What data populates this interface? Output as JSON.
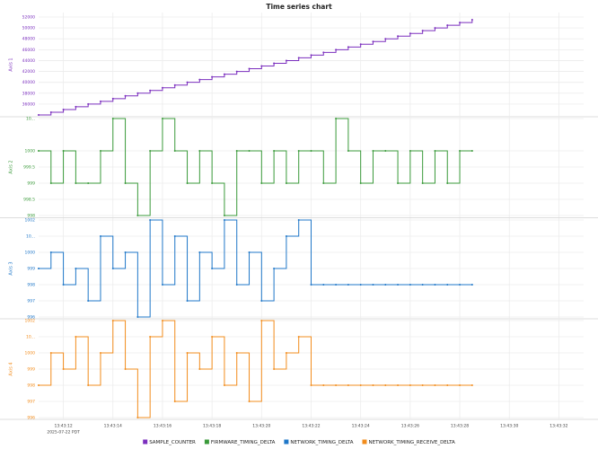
{
  "chart_data": {
    "type": "line",
    "title": "Time series chart",
    "x_sublabel": "2025-07-22 PDT",
    "step": true,
    "grid": true,
    "legend": "bottom",
    "x": [
      11,
      11.5,
      12,
      12.5,
      13,
      13.5,
      14,
      14.5,
      15,
      15.5,
      16,
      16.5,
      17,
      17.5,
      18,
      18.5,
      19,
      19.5,
      20,
      20.5,
      21,
      21.5,
      22,
      22.5,
      23,
      23.5,
      24,
      24.5,
      25,
      25.5,
      26,
      26.5,
      27,
      27.5,
      28,
      28.5
    ],
    "xlim": [
      11,
      33
    ],
    "xticks": [
      {
        "value": 12,
        "label": "13:43:12"
      },
      {
        "value": 14,
        "label": "13:43:14"
      },
      {
        "value": 16,
        "label": "13:43:16"
      },
      {
        "value": 18,
        "label": "13:43:18"
      },
      {
        "value": 20,
        "label": "13:43:20"
      },
      {
        "value": 22,
        "label": "13:43:22"
      },
      {
        "value": 24,
        "label": "13:43:24"
      },
      {
        "value": 26,
        "label": "13:43:26"
      },
      {
        "value": 28,
        "label": "13:43:28"
      },
      {
        "value": 30,
        "label": "13:43:30"
      },
      {
        "value": 32,
        "label": "13:43:32"
      }
    ],
    "panels": [
      {
        "y_label": "Axis 1",
        "ylim": [
          34000,
          52500
        ],
        "yticks": [
          36000,
          38000,
          40000,
          42000,
          44000,
          46000,
          48000,
          50000,
          52000
        ]
      },
      {
        "y_label": "Axis 2",
        "ylim": [
          998,
          1001
        ],
        "yticks": [
          998,
          998.5,
          999,
          999.5,
          1000,
          {
            "value": 1001,
            "label": "10..."
          }
        ]
      },
      {
        "y_label": "Axis 3",
        "ylim": [
          996,
          1002
        ],
        "yticks": [
          996,
          997,
          998,
          999,
          1000,
          {
            "value": 1001,
            "label": "10..."
          },
          1002
        ]
      },
      {
        "y_label": "Axis 4",
        "ylim": [
          996,
          1002
        ],
        "yticks": [
          996,
          997,
          998,
          999,
          1000,
          {
            "value": 1001,
            "label": "10..."
          },
          1002
        ]
      }
    ],
    "series": [
      {
        "name": "SAMPLE_COUNTER",
        "color": "#7b2fbe",
        "panel": 0,
        "values": [
          34000,
          34500,
          35000,
          35500,
          36000,
          36500,
          37000,
          37500,
          38000,
          38500,
          39000,
          39500,
          40000,
          40500,
          41000,
          41500,
          42000,
          42500,
          43000,
          43500,
          44000,
          44500,
          45000,
          45500,
          46000,
          46500,
          47000,
          47500,
          48000,
          48500,
          49000,
          49500,
          50000,
          50500,
          51000,
          51500
        ]
      },
      {
        "name": "FIRMWARE_TIMING_DELTA",
        "color": "#3a9a3a",
        "panel": 1,
        "values": [
          1000,
          999,
          1000,
          999,
          999,
          1000,
          1001,
          999,
          998,
          1000,
          1001,
          1000,
          999,
          1000,
          999,
          998,
          1000,
          1000,
          999,
          1000,
          999,
          1000,
          1000,
          999,
          1001,
          1000,
          999,
          1000,
          1000,
          999,
          1000,
          999,
          1000,
          999,
          1000,
          1000
        ]
      },
      {
        "name": "NETWORK_TIMING_DELTA",
        "color": "#1f77c8",
        "panel": 2,
        "values": [
          999,
          1000,
          998,
          999,
          997,
          1001,
          999,
          1000,
          996,
          1002,
          998,
          1001,
          997,
          1000,
          999,
          1002,
          998,
          1000,
          997,
          999,
          1001,
          1002,
          998,
          998,
          998,
          998,
          998,
          998,
          998,
          998,
          998,
          998,
          998,
          998,
          998,
          998
        ]
      },
      {
        "name": "NETWORK_TIMING_RECEIVE_DELTA",
        "color": "#f28c1c",
        "panel": 3,
        "values": [
          998,
          1000,
          999,
          1001,
          998,
          1000,
          1002,
          999,
          996,
          1001,
          1002,
          997,
          1000,
          999,
          1001,
          998,
          1000,
          997,
          1002,
          999,
          1000,
          1001,
          998,
          998,
          998,
          998,
          998,
          998,
          998,
          998,
          998,
          998,
          998,
          998,
          998,
          998
        ]
      }
    ]
  }
}
